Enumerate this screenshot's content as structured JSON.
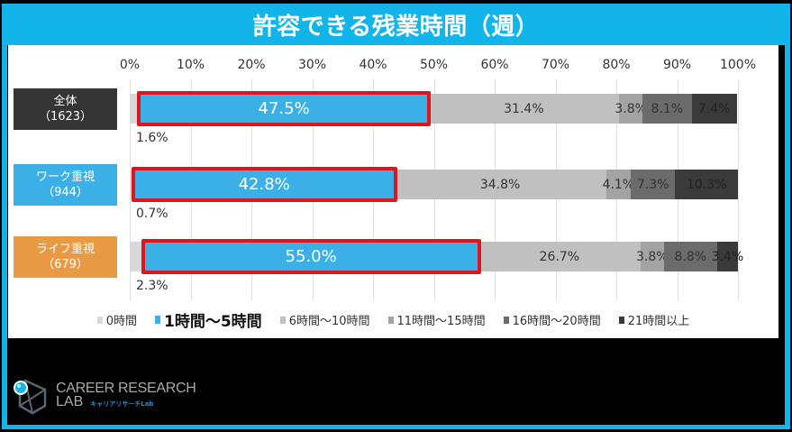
{
  "title": "許容できる残業時間（週）",
  "colors": {
    "frame": "#12b5ea",
    "highlight_border": "#e0141e",
    "zero_hours": "#d9d9d9",
    "one_to_five": "#3bb0e6",
    "six_to_ten": "#c0c0c0",
    "eleven_to_fifteen": "#a3a3a3",
    "sixteen_to_twenty": "#6b6b6b",
    "twentyone_plus": "#3a3a3a"
  },
  "axis": {
    "ticks": [
      "0%",
      "10%",
      "20%",
      "30%",
      "40%",
      "50%",
      "60%",
      "70%",
      "80%",
      "90%",
      "100%"
    ]
  },
  "categories": [
    {
      "name": "全体",
      "n": "（1623）",
      "color": "#353535"
    },
    {
      "name": "ワーク重視",
      "n": "（944）",
      "color": "#3bb0e6"
    },
    {
      "name": "ライフ重視",
      "n": "（679）",
      "color": "#e99a45"
    }
  ],
  "legend": [
    {
      "label": "0時間",
      "color": "#d9d9d9"
    },
    {
      "label": "1時間〜5時間",
      "color": "#3bb0e6"
    },
    {
      "label": "6時間〜10時間",
      "color": "#c0c0c0"
    },
    {
      "label": "11時間〜15時間",
      "color": "#a3a3a3"
    },
    {
      "label": "16時間〜20時間",
      "color": "#6b6b6b"
    },
    {
      "label": "21時間以上",
      "color": "#3a3a3a"
    }
  ],
  "rows": [
    {
      "segments": [
        {
          "value": 1.6,
          "label": "1.6%"
        },
        {
          "value": 47.5,
          "label": "47.5%"
        },
        {
          "value": 31.4,
          "label": "31.4%"
        },
        {
          "value": 3.8,
          "label": "3.8%"
        },
        {
          "value": 8.1,
          "label": "8.1%"
        },
        {
          "value": 7.4,
          "label": "7.4%"
        }
      ]
    },
    {
      "segments": [
        {
          "value": 0.7,
          "label": "0.7%"
        },
        {
          "value": 42.8,
          "label": "42.8%"
        },
        {
          "value": 34.8,
          "label": "34.8%"
        },
        {
          "value": 4.1,
          "label": "4.1%"
        },
        {
          "value": 7.3,
          "label": "7.3%"
        },
        {
          "value": 10.3,
          "label": "10.3%"
        }
      ]
    },
    {
      "segments": [
        {
          "value": 2.3,
          "label": "2.3%"
        },
        {
          "value": 55.0,
          "label": "55.0%"
        },
        {
          "value": 26.7,
          "label": "26.7%"
        },
        {
          "value": 3.8,
          "label": "3.8%"
        },
        {
          "value": 8.8,
          "label": "8.8%"
        },
        {
          "value": 3.4,
          "label": "3.4%"
        }
      ]
    }
  ],
  "logo": {
    "main": "CAREER RESEARCH",
    "lab": "LAB",
    "jp": "キャリアリサーチLab"
  },
  "chart_data": {
    "type": "bar",
    "orientation": "horizontal",
    "stacked": true,
    "percent_stacked": true,
    "title": "許容できる残業時間（週）",
    "categories": [
      "全体（1623）",
      "ワーク重視（944）",
      "ライフ重視（679）"
    ],
    "series": [
      {
        "name": "0時間",
        "values": [
          1.6,
          0.7,
          2.3
        ]
      },
      {
        "name": "1時間〜5時間",
        "values": [
          47.5,
          42.8,
          55.0
        ]
      },
      {
        "name": "6時間〜10時間",
        "values": [
          31.4,
          34.8,
          26.7
        ]
      },
      {
        "name": "11時間〜15時間",
        "values": [
          3.8,
          4.1,
          3.8
        ]
      },
      {
        "name": "16時間〜20時間",
        "values": [
          8.1,
          7.3,
          8.8
        ]
      },
      {
        "name": "21時間以上",
        "values": [
          7.4,
          10.3,
          3.4
        ]
      }
    ],
    "xlabel": "",
    "ylabel": "",
    "xlim": [
      0,
      100
    ],
    "x_ticks": [
      "0%",
      "10%",
      "20%",
      "30%",
      "40%",
      "50%",
      "60%",
      "70%",
      "80%",
      "90%",
      "100%"
    ],
    "grid": true,
    "legend_position": "bottom",
    "annotations": [
      "1時間〜5時間 segment highlighted with red border in all rows"
    ]
  }
}
